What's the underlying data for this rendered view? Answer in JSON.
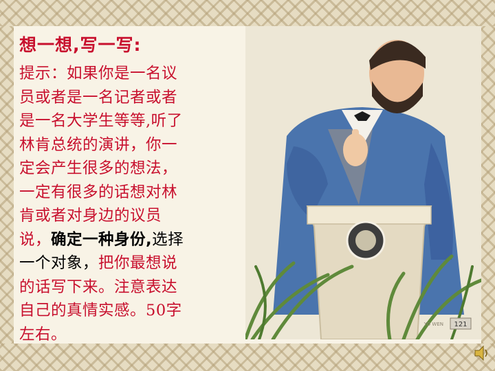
{
  "title": "想一想,写一写:",
  "prompt": {
    "part1": "提示：如果你是一名议\n员或者是一名记者或者\n是一名大学生等等,听了\n林肯总统的演讲，你一\n定会产生很多的想法，\n一定有很多的话想对林\n肯或者对身边的议员\n说，",
    "highlight": "确定一种身份,",
    "part2": "选择",
    "part3": "\n一个对象，",
    "part4": "把你最想说\n的话写下来。注意表达\n自己的真情实感。50字\n左右。"
  },
  "illustration": {
    "label": "Abraham Lincoln at lectern",
    "page_number": "121",
    "watermark": "YO WEN"
  },
  "colors": {
    "text_red": "#c8102e",
    "background": "#f8f3e6",
    "border": "#e6dcc2"
  }
}
